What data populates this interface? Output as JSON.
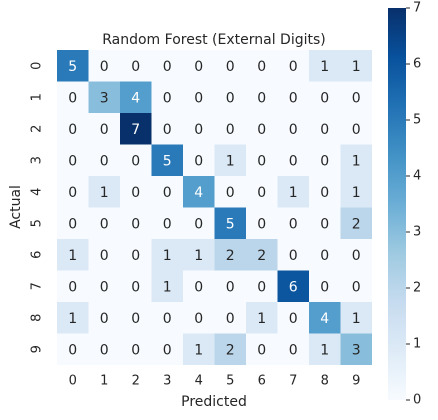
{
  "chart_data": {
    "type": "heatmap",
    "title": "Random Forest (External Digits)",
    "xlabel": "Predicted",
    "ylabel": "Actual",
    "x_categories": [
      "0",
      "1",
      "2",
      "3",
      "4",
      "5",
      "6",
      "7",
      "8",
      "9"
    ],
    "y_categories": [
      "0",
      "1",
      "2",
      "3",
      "4",
      "5",
      "6",
      "7",
      "8",
      "9"
    ],
    "values": [
      [
        5,
        0,
        0,
        0,
        0,
        0,
        0,
        0,
        1,
        1
      ],
      [
        0,
        3,
        4,
        0,
        0,
        0,
        0,
        0,
        0,
        0
      ],
      [
        0,
        0,
        7,
        0,
        0,
        0,
        0,
        0,
        0,
        0
      ],
      [
        0,
        0,
        0,
        5,
        0,
        1,
        0,
        0,
        0,
        1
      ],
      [
        0,
        1,
        0,
        0,
        4,
        0,
        0,
        1,
        0,
        1
      ],
      [
        0,
        0,
        0,
        0,
        0,
        5,
        0,
        0,
        0,
        2
      ],
      [
        1,
        0,
        0,
        1,
        1,
        2,
        2,
        0,
        0,
        0
      ],
      [
        0,
        0,
        0,
        1,
        0,
        0,
        0,
        6,
        0,
        0
      ],
      [
        1,
        0,
        0,
        0,
        0,
        0,
        1,
        0,
        4,
        1
      ],
      [
        0,
        0,
        0,
        0,
        1,
        2,
        0,
        0,
        1,
        3
      ]
    ],
    "colormap": "Blues",
    "vlim": [
      0,
      7
    ],
    "colorbar_ticks": [
      0,
      1,
      2,
      3,
      4,
      5,
      6,
      7
    ]
  }
}
